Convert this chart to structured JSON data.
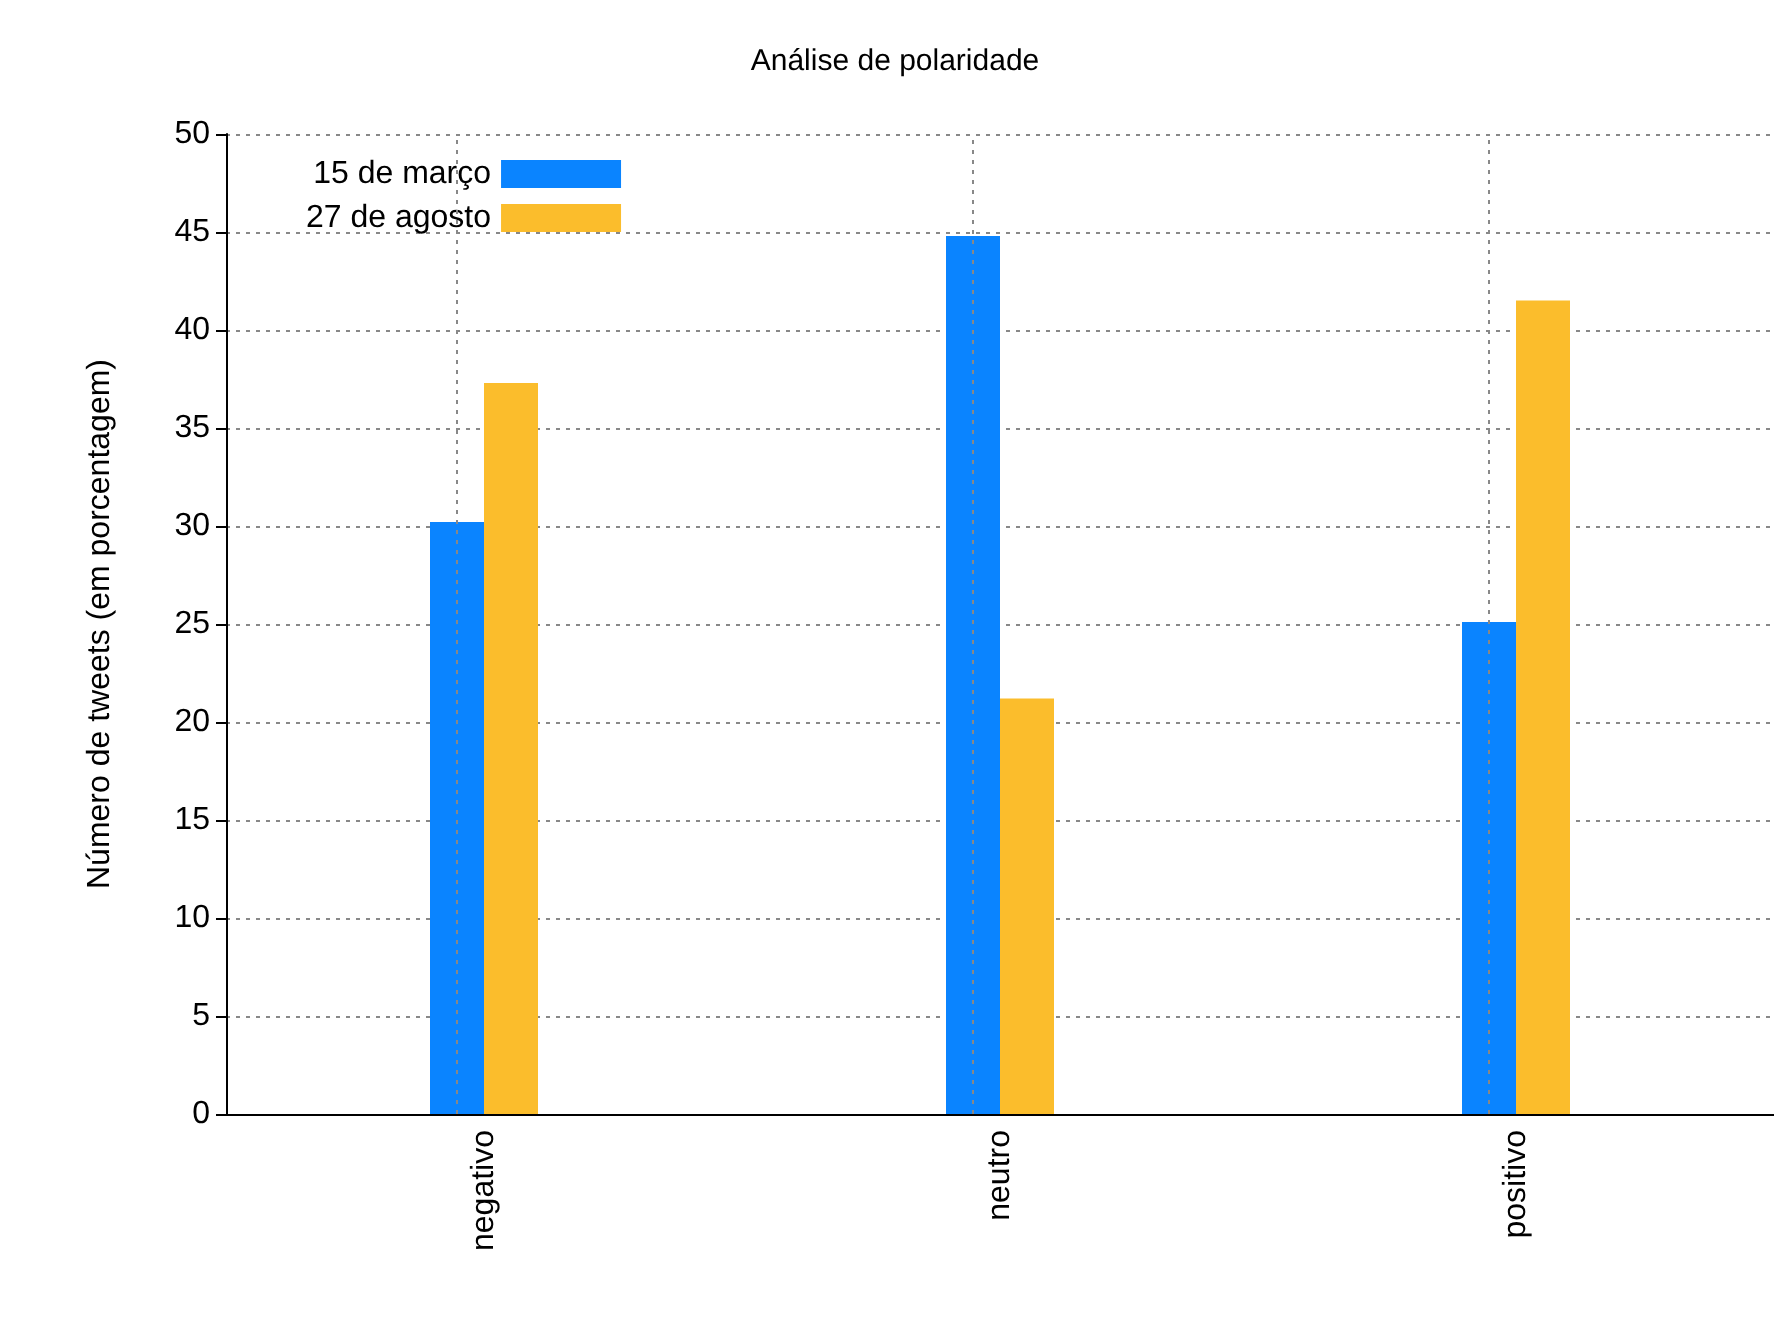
{
  "chart_data": {
    "type": "bar",
    "title": "Análise de polaridade",
    "ylabel": "Número de tweets (em porcentagem)",
    "categories": [
      "negativo",
      "neutro",
      "positivo"
    ],
    "series": [
      {
        "name": "15 de março",
        "color": "#0a84ff",
        "values": [
          30.2,
          44.8,
          25.1
        ]
      },
      {
        "name": "27 de agosto",
        "color": "#fbbd2c",
        "values": [
          37.3,
          21.2,
          41.5
        ]
      }
    ],
    "ylim": [
      0,
      50
    ],
    "yticks": [
      0,
      5,
      10,
      15,
      20,
      25,
      30,
      35,
      40,
      45,
      50
    ],
    "grid": true,
    "legend": "top left"
  }
}
